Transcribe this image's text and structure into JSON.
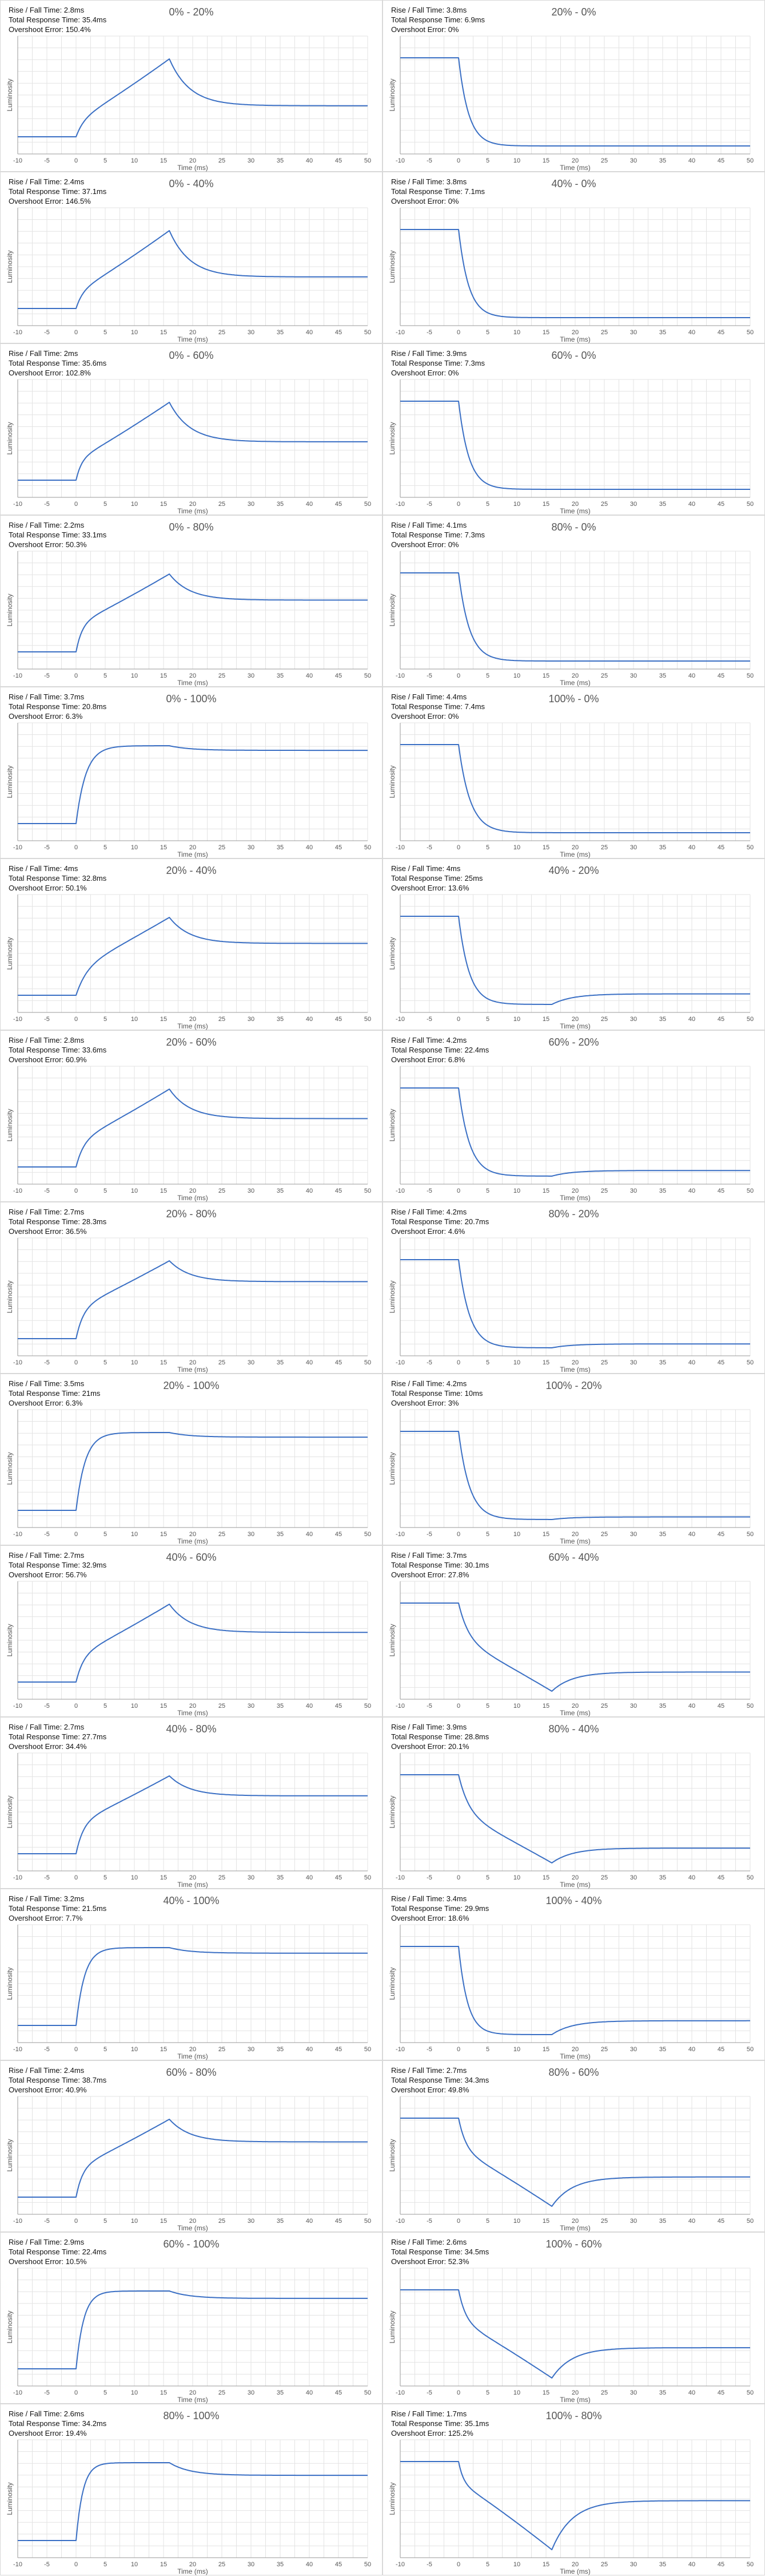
{
  "labels": {
    "rise_fall": "Rise / Fall Time:",
    "total": "Total Response Time:",
    "overshoot": "Overshoot Error:"
  },
  "chart_data": [
    {
      "type": "line",
      "title": "0% - 20%",
      "rise_fall": "2.8ms",
      "total": "35.4ms",
      "overshoot": "150.4%",
      "xlabel": "Time (ms)",
      "ylabel": "Luminosity",
      "xlim": [
        -10,
        50
      ],
      "x_ticks": [
        -10,
        -5,
        0,
        5,
        10,
        15,
        20,
        25,
        30,
        35,
        40,
        45,
        50
      ],
      "grid": true,
      "kind": "rise",
      "from": 0,
      "to": 20
    },
    {
      "type": "line",
      "title": "20% - 0%",
      "rise_fall": "3.8ms",
      "total": "6.9ms",
      "overshoot": "0%",
      "xlabel": "Time (ms)",
      "ylabel": "Luminosity",
      "xlim": [
        -10,
        50
      ],
      "x_ticks": [
        -10,
        -5,
        0,
        5,
        10,
        15,
        20,
        25,
        30,
        35,
        40,
        45,
        50
      ],
      "grid": true,
      "kind": "fall",
      "from": 20,
      "to": 0
    },
    {
      "type": "line",
      "title": "0% - 40%",
      "rise_fall": "2.4ms",
      "total": "37.1ms",
      "overshoot": "146.5%",
      "xlabel": "Time (ms)",
      "ylabel": "Luminosity",
      "xlim": [
        -10,
        50
      ],
      "x_ticks": [
        -10,
        -5,
        0,
        5,
        10,
        15,
        20,
        25,
        30,
        35,
        40,
        45,
        50
      ],
      "grid": true,
      "kind": "rise",
      "from": 0,
      "to": 40
    },
    {
      "type": "line",
      "title": "40% - 0%",
      "rise_fall": "3.8ms",
      "total": "7.1ms",
      "overshoot": "0%",
      "xlabel": "Time (ms)",
      "ylabel": "Luminosity",
      "xlim": [
        -10,
        50
      ],
      "x_ticks": [
        -10,
        -5,
        0,
        5,
        10,
        15,
        20,
        25,
        30,
        35,
        40,
        45,
        50
      ],
      "grid": true,
      "kind": "fall",
      "from": 40,
      "to": 0
    },
    {
      "type": "line",
      "title": "0% - 60%",
      "rise_fall": "2ms",
      "total": "35.6ms",
      "overshoot": "102.8%",
      "xlabel": "Time (ms)",
      "ylabel": "Luminosity",
      "xlim": [
        -10,
        50
      ],
      "x_ticks": [
        -10,
        -5,
        0,
        5,
        10,
        15,
        20,
        25,
        30,
        35,
        40,
        45,
        50
      ],
      "grid": true,
      "kind": "rise",
      "from": 0,
      "to": 60
    },
    {
      "type": "line",
      "title": "60% - 0%",
      "rise_fall": "3.9ms",
      "total": "7.3ms",
      "overshoot": "0%",
      "xlabel": "Time (ms)",
      "ylabel": "Luminosity",
      "xlim": [
        -10,
        50
      ],
      "x_ticks": [
        -10,
        -5,
        0,
        5,
        10,
        15,
        20,
        25,
        30,
        35,
        40,
        45,
        50
      ],
      "grid": true,
      "kind": "fall",
      "from": 60,
      "to": 0
    },
    {
      "type": "line",
      "title": "0% - 80%",
      "rise_fall": "2.2ms",
      "total": "33.1ms",
      "overshoot": "50.3%",
      "xlabel": "Time (ms)",
      "ylabel": "Luminosity",
      "xlim": [
        -10,
        50
      ],
      "x_ticks": [
        -10,
        -5,
        0,
        5,
        10,
        15,
        20,
        25,
        30,
        35,
        40,
        45,
        50
      ],
      "grid": true,
      "kind": "rise",
      "from": 0,
      "to": 80
    },
    {
      "type": "line",
      "title": "80% - 0%",
      "rise_fall": "4.1ms",
      "total": "7.3ms",
      "overshoot": "0%",
      "xlabel": "Time (ms)",
      "ylabel": "Luminosity",
      "xlim": [
        -10,
        50
      ],
      "x_ticks": [
        -10,
        -5,
        0,
        5,
        10,
        15,
        20,
        25,
        30,
        35,
        40,
        45,
        50
      ],
      "grid": true,
      "kind": "fall",
      "from": 80,
      "to": 0
    },
    {
      "type": "line",
      "title": "0% - 100%",
      "rise_fall": "3.7ms",
      "total": "20.8ms",
      "overshoot": "6.3%",
      "xlabel": "Time (ms)",
      "ylabel": "Luminosity",
      "xlim": [
        -10,
        50
      ],
      "x_ticks": [
        -10,
        -5,
        0,
        5,
        10,
        15,
        20,
        25,
        30,
        35,
        40,
        45,
        50
      ],
      "grid": true,
      "kind": "rise",
      "from": 0,
      "to": 100
    },
    {
      "type": "line",
      "title": "100% - 0%",
      "rise_fall": "4.4ms",
      "total": "7.4ms",
      "overshoot": "0%",
      "xlabel": "Time (ms)",
      "ylabel": "Luminosity",
      "xlim": [
        -10,
        50
      ],
      "x_ticks": [
        -10,
        -5,
        0,
        5,
        10,
        15,
        20,
        25,
        30,
        35,
        40,
        45,
        50
      ],
      "grid": true,
      "kind": "fall",
      "from": 100,
      "to": 0
    },
    {
      "type": "line",
      "title": "20% - 40%",
      "rise_fall": "4ms",
      "total": "32.8ms",
      "overshoot": "50.1%",
      "xlabel": "Time (ms)",
      "ylabel": "Luminosity",
      "xlim": [
        -10,
        50
      ],
      "x_ticks": [
        -10,
        -5,
        0,
        5,
        10,
        15,
        20,
        25,
        30,
        35,
        40,
        45,
        50
      ],
      "grid": true,
      "kind": "rise",
      "from": 20,
      "to": 40
    },
    {
      "type": "line",
      "title": "40% - 20%",
      "rise_fall": "4ms",
      "total": "25ms",
      "overshoot": "13.6%",
      "xlabel": "Time (ms)",
      "ylabel": "Luminosity",
      "xlim": [
        -10,
        50
      ],
      "x_ticks": [
        -10,
        -5,
        0,
        5,
        10,
        15,
        20,
        25,
        30,
        35,
        40,
        45,
        50
      ],
      "grid": true,
      "kind": "fall",
      "from": 40,
      "to": 20
    },
    {
      "type": "line",
      "title": "20% - 60%",
      "rise_fall": "2.8ms",
      "total": "33.6ms",
      "overshoot": "60.9%",
      "xlabel": "Time (ms)",
      "ylabel": "Luminosity",
      "xlim": [
        -10,
        50
      ],
      "x_ticks": [
        -10,
        -5,
        0,
        5,
        10,
        15,
        20,
        25,
        30,
        35,
        40,
        45,
        50
      ],
      "grid": true,
      "kind": "rise",
      "from": 20,
      "to": 60
    },
    {
      "type": "line",
      "title": "60% - 20%",
      "rise_fall": "4.2ms",
      "total": "22.4ms",
      "overshoot": "6.8%",
      "xlabel": "Time (ms)",
      "ylabel": "Luminosity",
      "xlim": [
        -10,
        50
      ],
      "x_ticks": [
        -10,
        -5,
        0,
        5,
        10,
        15,
        20,
        25,
        30,
        35,
        40,
        45,
        50
      ],
      "grid": true,
      "kind": "fall",
      "from": 60,
      "to": 20
    },
    {
      "type": "line",
      "title": "20% - 80%",
      "rise_fall": "2.7ms",
      "total": "28.3ms",
      "overshoot": "36.5%",
      "xlabel": "Time (ms)",
      "ylabel": "Luminosity",
      "xlim": [
        -10,
        50
      ],
      "x_ticks": [
        -10,
        -5,
        0,
        5,
        10,
        15,
        20,
        25,
        30,
        35,
        40,
        45,
        50
      ],
      "grid": true,
      "kind": "rise",
      "from": 20,
      "to": 80
    },
    {
      "type": "line",
      "title": "80% - 20%",
      "rise_fall": "4.2ms",
      "total": "20.7ms",
      "overshoot": "4.6%",
      "xlabel": "Time (ms)",
      "ylabel": "Luminosity",
      "xlim": [
        -10,
        50
      ],
      "x_ticks": [
        -10,
        -5,
        0,
        5,
        10,
        15,
        20,
        25,
        30,
        35,
        40,
        45,
        50
      ],
      "grid": true,
      "kind": "fall",
      "from": 80,
      "to": 20
    },
    {
      "type": "line",
      "title": "20% - 100%",
      "rise_fall": "3.5ms",
      "total": "21ms",
      "overshoot": "6.3%",
      "xlabel": "Time (ms)",
      "ylabel": "Luminosity",
      "xlim": [
        -10,
        50
      ],
      "x_ticks": [
        -10,
        -5,
        0,
        5,
        10,
        15,
        20,
        25,
        30,
        35,
        40,
        45,
        50
      ],
      "grid": true,
      "kind": "rise",
      "from": 20,
      "to": 100
    },
    {
      "type": "line",
      "title": "100% - 20%",
      "rise_fall": "4.2ms",
      "total": "10ms",
      "overshoot": "3%",
      "xlabel": "Time (ms)",
      "ylabel": "Luminosity",
      "xlim": [
        -10,
        50
      ],
      "x_ticks": [
        -10,
        -5,
        0,
        5,
        10,
        15,
        20,
        25,
        30,
        35,
        40,
        45,
        50
      ],
      "grid": true,
      "kind": "fall",
      "from": 100,
      "to": 20
    },
    {
      "type": "line",
      "title": "40% - 60%",
      "rise_fall": "2.7ms",
      "total": "32.9ms",
      "overshoot": "56.7%",
      "xlabel": "Time (ms)",
      "ylabel": "Luminosity",
      "xlim": [
        -10,
        50
      ],
      "x_ticks": [
        -10,
        -5,
        0,
        5,
        10,
        15,
        20,
        25,
        30,
        35,
        40,
        45,
        50
      ],
      "grid": true,
      "kind": "rise",
      "from": 40,
      "to": 60
    },
    {
      "type": "line",
      "title": "60% - 40%",
      "rise_fall": "3.7ms",
      "total": "30.1ms",
      "overshoot": "27.8%",
      "xlabel": "Time (ms)",
      "ylabel": "Luminosity",
      "xlim": [
        -10,
        50
      ],
      "x_ticks": [
        -10,
        -5,
        0,
        5,
        10,
        15,
        20,
        25,
        30,
        35,
        40,
        45,
        50
      ],
      "grid": true,
      "kind": "fall",
      "from": 60,
      "to": 40
    },
    {
      "type": "line",
      "title": "40% - 80%",
      "rise_fall": "2.7ms",
      "total": "27.7ms",
      "overshoot": "34.4%",
      "xlabel": "Time (ms)",
      "ylabel": "Luminosity",
      "xlim": [
        -10,
        50
      ],
      "x_ticks": [
        -10,
        -5,
        0,
        5,
        10,
        15,
        20,
        25,
        30,
        35,
        40,
        45,
        50
      ],
      "grid": true,
      "kind": "rise",
      "from": 40,
      "to": 80
    },
    {
      "type": "line",
      "title": "80% - 40%",
      "rise_fall": "3.9ms",
      "total": "28.8ms",
      "overshoot": "20.1%",
      "xlabel": "Time (ms)",
      "ylabel": "Luminosity",
      "xlim": [
        -10,
        50
      ],
      "x_ticks": [
        -10,
        -5,
        0,
        5,
        10,
        15,
        20,
        25,
        30,
        35,
        40,
        45,
        50
      ],
      "grid": true,
      "kind": "fall",
      "from": 80,
      "to": 40
    },
    {
      "type": "line",
      "title": "40% - 100%",
      "rise_fall": "3.2ms",
      "total": "21.5ms",
      "overshoot": "7.7%",
      "xlabel": "Time (ms)",
      "ylabel": "Luminosity",
      "xlim": [
        -10,
        50
      ],
      "x_ticks": [
        -10,
        -5,
        0,
        5,
        10,
        15,
        20,
        25,
        30,
        35,
        40,
        45,
        50
      ],
      "grid": true,
      "kind": "rise",
      "from": 40,
      "to": 100
    },
    {
      "type": "line",
      "title": "100% - 40%",
      "rise_fall": "3.4ms",
      "total": "29.9ms",
      "overshoot": "18.6%",
      "xlabel": "Time (ms)",
      "ylabel": "Luminosity",
      "xlim": [
        -10,
        50
      ],
      "x_ticks": [
        -10,
        -5,
        0,
        5,
        10,
        15,
        20,
        25,
        30,
        35,
        40,
        45,
        50
      ],
      "grid": true,
      "kind": "fall",
      "from": 100,
      "to": 40
    },
    {
      "type": "line",
      "title": "60% - 80%",
      "rise_fall": "2.4ms",
      "total": "38.7ms",
      "overshoot": "40.9%",
      "xlabel": "Time (ms)",
      "ylabel": "Luminosity",
      "xlim": [
        -10,
        50
      ],
      "x_ticks": [
        -10,
        -5,
        0,
        5,
        10,
        15,
        20,
        25,
        30,
        35,
        40,
        45,
        50
      ],
      "grid": true,
      "kind": "rise",
      "from": 60,
      "to": 80
    },
    {
      "type": "line",
      "title": "80% - 60%",
      "rise_fall": "2.7ms",
      "total": "34.3ms",
      "overshoot": "49.8%",
      "xlabel": "Time (ms)",
      "ylabel": "Luminosity",
      "xlim": [
        -10,
        50
      ],
      "x_ticks": [
        -10,
        -5,
        0,
        5,
        10,
        15,
        20,
        25,
        30,
        35,
        40,
        45,
        50
      ],
      "grid": true,
      "kind": "fall",
      "from": 80,
      "to": 60
    },
    {
      "type": "line",
      "title": "60% - 100%",
      "rise_fall": "2.9ms",
      "total": "22.4ms",
      "overshoot": "10.5%",
      "xlabel": "Time (ms)",
      "ylabel": "Luminosity",
      "xlim": [
        -10,
        50
      ],
      "x_ticks": [
        -10,
        -5,
        0,
        5,
        10,
        15,
        20,
        25,
        30,
        35,
        40,
        45,
        50
      ],
      "grid": true,
      "kind": "rise",
      "from": 60,
      "to": 100
    },
    {
      "type": "line",
      "title": "100% - 60%",
      "rise_fall": "2.6ms",
      "total": "34.5ms",
      "overshoot": "52.3%",
      "xlabel": "Time (ms)",
      "ylabel": "Luminosity",
      "xlim": [
        -10,
        50
      ],
      "x_ticks": [
        -10,
        -5,
        0,
        5,
        10,
        15,
        20,
        25,
        30,
        35,
        40,
        45,
        50
      ],
      "grid": true,
      "kind": "fall",
      "from": 100,
      "to": 60
    },
    {
      "type": "line",
      "title": "80% - 100%",
      "rise_fall": "2.6ms",
      "total": "34.2ms",
      "overshoot": "19.4%",
      "xlabel": "Time (ms)",
      "ylabel": "Luminosity",
      "xlim": [
        -10,
        50
      ],
      "x_ticks": [
        -10,
        -5,
        0,
        5,
        10,
        15,
        20,
        25,
        30,
        35,
        40,
        45,
        50
      ],
      "grid": true,
      "kind": "rise",
      "from": 80,
      "to": 100
    },
    {
      "type": "line",
      "title": "100% - 80%",
      "rise_fall": "1.7ms",
      "total": "35.1ms",
      "overshoot": "125.2%",
      "xlabel": "Time (ms)",
      "ylabel": "Luminosity",
      "xlim": [
        -10,
        50
      ],
      "x_ticks": [
        -10,
        -5,
        0,
        5,
        10,
        15,
        20,
        25,
        30,
        35,
        40,
        45,
        50
      ],
      "grid": true,
      "kind": "fall",
      "from": 100,
      "to": 80
    }
  ],
  "colors": {
    "line": "#3a6fc4",
    "grid": "#e3e3e3",
    "axis": "#9a9a9a",
    "panel_border": "#d8d8d8"
  }
}
